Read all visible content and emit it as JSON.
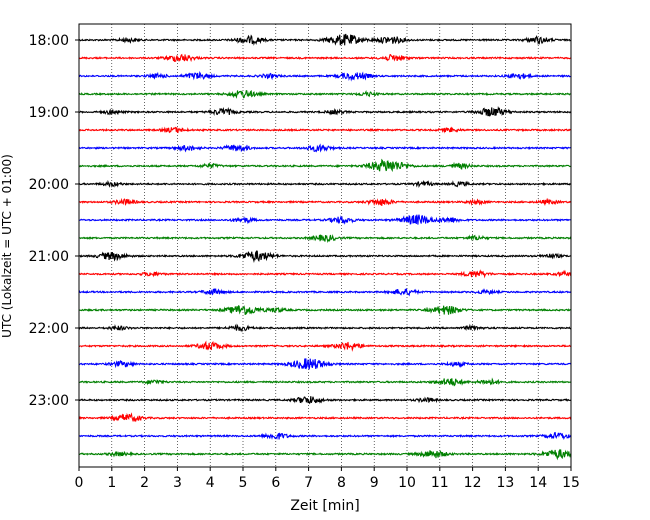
{
  "chart_data": {
    "type": "line",
    "xlabel": "Zeit  [min]",
    "ylabel": "UTC (Lokalzeit = UTC + 01:00)",
    "xlim": [
      0,
      15
    ],
    "x_ticks": [
      0,
      1,
      2,
      3,
      4,
      5,
      6,
      7,
      8,
      9,
      10,
      11,
      12,
      13,
      14,
      15
    ],
    "y_tick_labels": [
      "18:00",
      "19:00",
      "20:00",
      "21:00",
      "22:00",
      "23:00"
    ],
    "grid": "vertical dotted lines at each minute",
    "colors": [
      "#000000",
      "#ff0000",
      "#0000ff",
      "#008000"
    ],
    "traces": [
      {
        "start": "18:00",
        "color": "#000000",
        "bursts": [
          [
            1.5,
            0.3
          ],
          [
            5.2,
            0.6
          ],
          [
            8.1,
            0.9
          ],
          [
            9.5,
            0.6
          ],
          [
            14.0,
            0.5
          ]
        ]
      },
      {
        "start": "18:15",
        "color": "#ff0000",
        "bursts": [
          [
            3.1,
            0.6
          ],
          [
            9.6,
            0.5
          ]
        ]
      },
      {
        "start": "18:30",
        "color": "#0000ff",
        "bursts": [
          [
            2.4,
            0.3
          ],
          [
            3.6,
            0.5
          ],
          [
            5.8,
            0.3
          ],
          [
            8.2,
            0.4
          ],
          [
            8.6,
            0.4
          ],
          [
            13.4,
            0.4
          ]
        ]
      },
      {
        "start": "18:45",
        "color": "#008000",
        "bursts": [
          [
            5.0,
            0.6
          ],
          [
            8.8,
            0.3
          ]
        ]
      },
      {
        "start": "19:00",
        "color": "#000000",
        "bursts": [
          [
            1.0,
            0.3
          ],
          [
            4.4,
            0.5
          ],
          [
            7.8,
            0.3
          ],
          [
            12.6,
            0.7
          ]
        ]
      },
      {
        "start": "19:15",
        "color": "#ff0000",
        "bursts": [
          [
            2.9,
            0.4
          ],
          [
            11.3,
            0.3
          ]
        ]
      },
      {
        "start": "19:30",
        "color": "#0000ff",
        "bursts": [
          [
            3.3,
            0.4
          ],
          [
            4.8,
            0.5
          ],
          [
            7.3,
            0.5
          ]
        ]
      },
      {
        "start": "19:45",
        "color": "#008000",
        "bursts": [
          [
            4.0,
            0.3
          ],
          [
            9.4,
            1.0
          ],
          [
            11.6,
            0.4
          ]
        ]
      },
      {
        "start": "20:00",
        "color": "#000000",
        "bursts": [
          [
            1.0,
            0.3
          ],
          [
            10.5,
            0.3
          ],
          [
            11.6,
            0.3
          ]
        ]
      },
      {
        "start": "20:15",
        "color": "#ff0000",
        "bursts": [
          [
            1.4,
            0.4
          ],
          [
            9.2,
            0.5
          ],
          [
            12.1,
            0.3
          ],
          [
            14.3,
            0.3
          ]
        ]
      },
      {
        "start": "20:30",
        "color": "#0000ff",
        "bursts": [
          [
            5.0,
            0.4
          ],
          [
            8.0,
            0.5
          ],
          [
            10.3,
            0.8
          ],
          [
            11.3,
            0.4
          ]
        ]
      },
      {
        "start": "20:45",
        "color": "#008000",
        "bursts": [
          [
            7.5,
            0.5
          ],
          [
            12.1,
            0.3
          ]
        ]
      },
      {
        "start": "21:00",
        "color": "#000000",
        "bursts": [
          [
            1.0,
            0.6
          ],
          [
            5.4,
            0.8
          ],
          [
            14.4,
            0.3
          ]
        ]
      },
      {
        "start": "21:15",
        "color": "#ff0000",
        "bursts": [
          [
            2.2,
            0.3
          ],
          [
            12.1,
            0.5
          ],
          [
            14.8,
            0.3
          ]
        ]
      },
      {
        "start": "21:30",
        "color": "#0000ff",
        "bursts": [
          [
            4.1,
            0.4
          ],
          [
            9.9,
            0.5
          ],
          [
            12.4,
            0.3
          ]
        ]
      },
      {
        "start": "21:45",
        "color": "#008000",
        "bursts": [
          [
            5.0,
            0.8
          ],
          [
            6.0,
            0.3
          ],
          [
            11.2,
            0.7
          ]
        ]
      },
      {
        "start": "22:00",
        "color": "#000000",
        "bursts": [
          [
            1.2,
            0.3
          ],
          [
            4.9,
            0.4
          ],
          [
            12.0,
            0.3
          ]
        ]
      },
      {
        "start": "22:15",
        "color": "#ff0000",
        "bursts": [
          [
            4.0,
            0.6
          ],
          [
            8.2,
            0.6
          ]
        ]
      },
      {
        "start": "22:30",
        "color": "#0000ff",
        "bursts": [
          [
            1.3,
            0.4
          ],
          [
            7.0,
            0.9
          ],
          [
            11.5,
            0.3
          ]
        ]
      },
      {
        "start": "22:45",
        "color": "#008000",
        "bursts": [
          [
            2.3,
            0.3
          ],
          [
            11.3,
            0.6
          ],
          [
            12.5,
            0.4
          ]
        ]
      },
      {
        "start": "23:00",
        "color": "#000000",
        "bursts": [
          [
            7.0,
            0.6
          ],
          [
            10.6,
            0.3
          ]
        ]
      },
      {
        "start": "23:15",
        "color": "#ff0000",
        "bursts": [
          [
            1.5,
            0.6
          ]
        ]
      },
      {
        "start": "23:30",
        "color": "#0000ff",
        "bursts": [
          [
            6.0,
            0.5
          ],
          [
            14.6,
            0.5
          ]
        ]
      },
      {
        "start": "23:45",
        "color": "#008000",
        "bursts": [
          [
            1.2,
            0.3
          ],
          [
            10.8,
            0.6
          ],
          [
            14.6,
            0.7
          ]
        ]
      }
    ]
  }
}
